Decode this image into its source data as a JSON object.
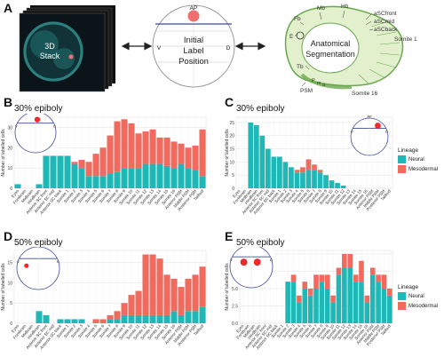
{
  "panels": {
    "A": {
      "letter": "A",
      "stack_label_line1": "3D",
      "stack_label_line2": "Stack",
      "axis_top": "AP",
      "axis_left": "V",
      "axis_right": "D",
      "initial_line1": "Initial",
      "initial_line2": "Label",
      "initial_line3": "Position",
      "seg_line1": "Anatomical",
      "seg_line2": "Segmentation",
      "seg_labels": {
        "mb": "Mb",
        "hb": "Hb",
        "asc_front": "aSCfront",
        "asc_mid": "aSCmid",
        "asc_back": "aSCback",
        "fb": "Fb",
        "e": "E",
        "somite1": "Somite 1",
        "tb": "Tb",
        "psm": "PSM",
        "p": "P",
        "m": "m",
        "a": "a",
        "somite16": "Somite 16"
      },
      "colors": {
        "embryo_bg": "#0b1418",
        "embryo_cells": "#3fb6b2",
        "label_dot": "#ef6f6f",
        "seg_fill": "#e3f0cd",
        "seg_stroke": "#6aa84f"
      }
    },
    "B": {
      "letter": "B",
      "title": "30% epiboly",
      "inset_dot": "single"
    },
    "C": {
      "letter": "C",
      "title": "30% epiboly",
      "inset_dot": "single-right"
    },
    "D": {
      "letter": "D",
      "title": "50% epiboly",
      "inset_dot": "single-low"
    },
    "E": {
      "letter": "E",
      "title": "50% epiboly",
      "inset_dot": "double"
    }
  },
  "legend": {
    "title": "Lineage",
    "neural": "Neural",
    "mesodermal": "Mesodermal"
  },
  "ylabel": "Number of labelled cells",
  "inset": {
    "ap": "AP",
    "v": "V",
    "d": "D"
  },
  "colors": {
    "neural": "#1fb8b6",
    "mesodermal": "#f26a5e",
    "grid": "#e6e6e6",
    "axis": "#333333"
  },
  "chart_data": [
    {
      "panel": "B",
      "type": "bar",
      "title": "30% epiboly",
      "ylabel": "Number of labelled cells",
      "ylim": [
        0,
        35
      ],
      "yticks": [
        0,
        10,
        20,
        30
      ],
      "categories": [
        "Eyes",
        "Forebrain",
        "Midbrain",
        "Hindbrain",
        "Anterior SC front",
        "Anterior SC mid",
        "Anterior SC back",
        "Somite 1",
        "Somite 2",
        "Somite 3",
        "Somite 4",
        "Somite 5",
        "Somite 6",
        "Somite 7",
        "Somite 8",
        "Somite 9",
        "Somite 10",
        "Somite 11",
        "Somite 12",
        "Somite 13",
        "Somite 14",
        "Somite 15",
        "Somite 16",
        "Anterior PSM",
        "Middle PSM",
        "Posterior PSM",
        "Tailbud"
      ],
      "series": [
        {
          "name": "Neural",
          "values": [
            2,
            0,
            0,
            2,
            16,
            16,
            16,
            16,
            12,
            10,
            6,
            6,
            6,
            7,
            8,
            10,
            10,
            10,
            12,
            12,
            12,
            11,
            10,
            12,
            10,
            9,
            6
          ]
        },
        {
          "name": "Mesodermal",
          "values": [
            0,
            0,
            0,
            0,
            0,
            0,
            0,
            0,
            1,
            4,
            7,
            11,
            14,
            19,
            25,
            24,
            22,
            17,
            16,
            17,
            13,
            14,
            13,
            10,
            10,
            12,
            23
          ]
        }
      ],
      "legend": false,
      "grid": true
    },
    {
      "panel": "C",
      "type": "bar",
      "title": "30% epiboly",
      "ylabel": "Number of labelled cells",
      "ylim": [
        0,
        27
      ],
      "yticks": [
        0,
        5,
        10,
        15,
        20,
        25
      ],
      "categories": [
        "Eyes",
        "Forebrain",
        "Midbrain",
        "Hindbrain",
        "Anterior SC front",
        "Anterior SC mid",
        "Anterior SC back",
        "Somite 1",
        "Somite 2",
        "Somite 3",
        "Somite 4",
        "Somite 5",
        "Somite 6",
        "Somite 7",
        "Somite 8",
        "Somite 9",
        "Somite 10",
        "Somite 11",
        "Somite 12",
        "Somite 13",
        "Somite 14",
        "Somite 15",
        "Somite 16",
        "Anterior PSM",
        "Middle PSM",
        "Posterior PSM",
        "Tailbud"
      ],
      "series": [
        {
          "name": "Neural",
          "values": [
            0,
            0,
            25,
            24,
            20,
            15,
            12,
            12,
            10,
            8,
            6,
            6,
            7,
            7,
            6,
            5,
            3,
            2,
            1,
            0,
            0,
            0,
            0,
            0,
            0,
            0,
            0
          ]
        },
        {
          "name": "Mesodermal",
          "values": [
            0,
            0,
            0,
            0,
            0,
            0,
            0,
            0,
            0,
            0,
            1,
            2,
            4,
            2,
            1,
            0,
            0,
            0,
            0,
            0,
            0,
            0,
            0,
            0,
            0,
            0,
            0
          ]
        }
      ],
      "legend": "right",
      "grid": true
    },
    {
      "panel": "D",
      "type": "bar",
      "title": "50% epiboly",
      "ylabel": "Number of labelled cells",
      "ylim": [
        0,
        18
      ],
      "yticks": [
        0,
        5,
        10,
        15
      ],
      "categories": [
        "Eyes",
        "Forebrain",
        "Midbrain",
        "Hindbrain",
        "Anterior SC front",
        "Anterior SC mid",
        "Anterior SC back",
        "Somite 1",
        "Somite 2",
        "Somite 3",
        "Somite 4",
        "Somite 5",
        "Somite 6",
        "Somite 7",
        "Somite 8",
        "Somite 9",
        "Somite 10",
        "Somite 11",
        "Somite 12",
        "Somite 13",
        "Somite 14",
        "Somite 15",
        "Somite 16",
        "Anterior PSM",
        "Middle PSM",
        "Posterior PSM",
        "Tailbud"
      ],
      "series": [
        {
          "name": "Neural",
          "values": [
            0,
            0,
            0,
            3,
            2,
            0,
            1,
            1,
            1,
            1,
            0,
            0,
            0,
            1,
            1,
            2,
            2,
            2,
            2,
            2,
            2,
            2,
            3,
            2,
            3,
            3,
            4
          ]
        },
        {
          "name": "Mesodermal",
          "values": [
            0,
            0,
            0,
            0,
            0,
            0,
            0,
            0,
            0,
            0,
            0,
            1,
            1,
            1,
            2,
            3,
            5,
            6,
            15,
            15,
            14,
            10,
            8,
            7,
            8,
            9,
            10
          ]
        }
      ],
      "legend": false,
      "grid": true
    },
    {
      "panel": "E",
      "type": "bar",
      "title": "50% epiboly",
      "ylabel": "Number of labelled cells",
      "ylim": [
        0,
        10.5
      ],
      "yticks": [
        0.0,
        2.5,
        5.0,
        7.5,
        10.0
      ],
      "categories": [
        "Eyes",
        "Forebrain",
        "Midbrain",
        "Hindbrain",
        "Anterior SC front",
        "Anterior SC mid",
        "Anterior SC back",
        "Somite 1",
        "Somite 2",
        "Somite 3",
        "Somite 4",
        "Somite 5",
        "Somite 6",
        "Somite 7",
        "Somite 8",
        "Somite 9",
        "Somite 10",
        "Somite 11",
        "Somite 12",
        "Somite 13",
        "Somite 14",
        "Somite 15",
        "Somite 16",
        "Anterior PSM",
        "Middle PSM",
        "Posterior PSM",
        "Tailbud"
      ],
      "series": [
        {
          "name": "Neural",
          "values": [
            0,
            0,
            0,
            0,
            0,
            0,
            0,
            0,
            6,
            6,
            3,
            5,
            4,
            5,
            6,
            5,
            3,
            7,
            8,
            8,
            6,
            6,
            3,
            7,
            6,
            5,
            4
          ]
        },
        {
          "name": "Mesodermal",
          "values": [
            0,
            0,
            0,
            0,
            0,
            0,
            0,
            0,
            0,
            1,
            1,
            1,
            1,
            2,
            1,
            2,
            1,
            1,
            2,
            2,
            1,
            3,
            1,
            1,
            1,
            2,
            1
          ]
        }
      ],
      "legend": "right",
      "grid": true
    }
  ]
}
